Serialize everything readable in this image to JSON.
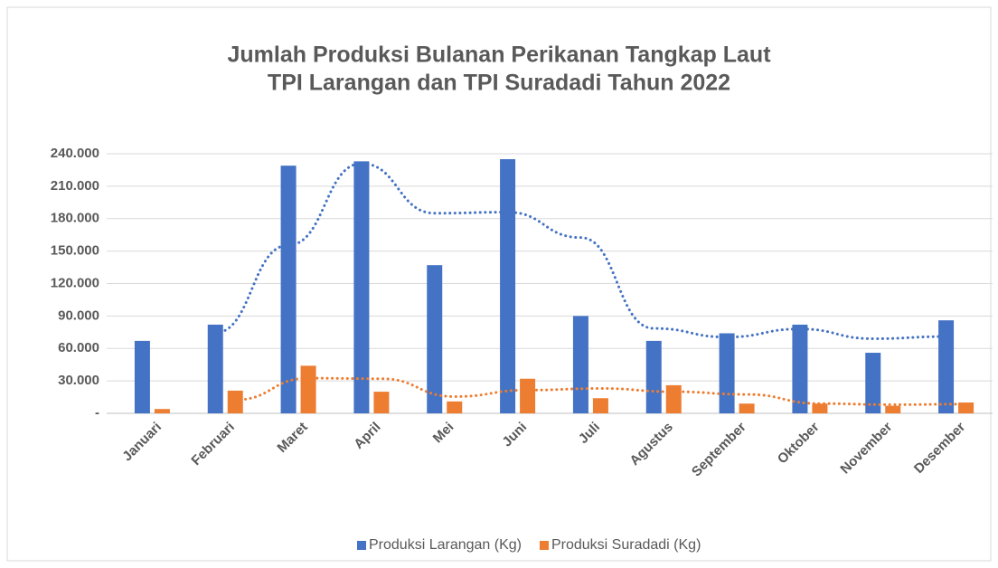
{
  "chart_data": {
    "type": "bar",
    "title": [
      "Jumlah Produksi Bulanan Perikanan Tangkap Laut",
      "TPI Larangan dan TPI Suradadi Tahun 2022"
    ],
    "categories": [
      "Januari",
      "Februari",
      "Maret",
      "April",
      "Mei",
      "Juni",
      "Juli",
      "Agustus",
      "September",
      "Oktober",
      "November",
      "Desember"
    ],
    "series": [
      {
        "name": "Produksi Larangan (Kg)",
        "color": "#4472c4",
        "values": [
          67000,
          82000,
          229000,
          233000,
          137000,
          235000,
          90000,
          67000,
          74000,
          82000,
          56000,
          86000
        ]
      },
      {
        "name": "Produksi Suradadi (Kg)",
        "color": "#ed7d31",
        "values": [
          4000,
          21000,
          44000,
          20000,
          11000,
          32000,
          14000,
          26000,
          9000,
          9000,
          7000,
          10000
        ]
      }
    ],
    "ylim": [
      0,
      240000
    ],
    "yticks": [
      {
        "value": 0,
        "label": "-"
      },
      {
        "value": 30000,
        "label": "30.000"
      },
      {
        "value": 60000,
        "label": "60.000"
      },
      {
        "value": 90000,
        "label": "90.000"
      },
      {
        "value": 120000,
        "label": "120.000"
      },
      {
        "value": 150000,
        "label": "150.000"
      },
      {
        "value": 180000,
        "label": "180.000"
      },
      {
        "value": 210000,
        "label": "210.000"
      },
      {
        "value": 240000,
        "label": "240.000"
      }
    ],
    "grid": true,
    "legend": "bottom",
    "trendline": {
      "type": "moving_average",
      "period": 2
    }
  }
}
